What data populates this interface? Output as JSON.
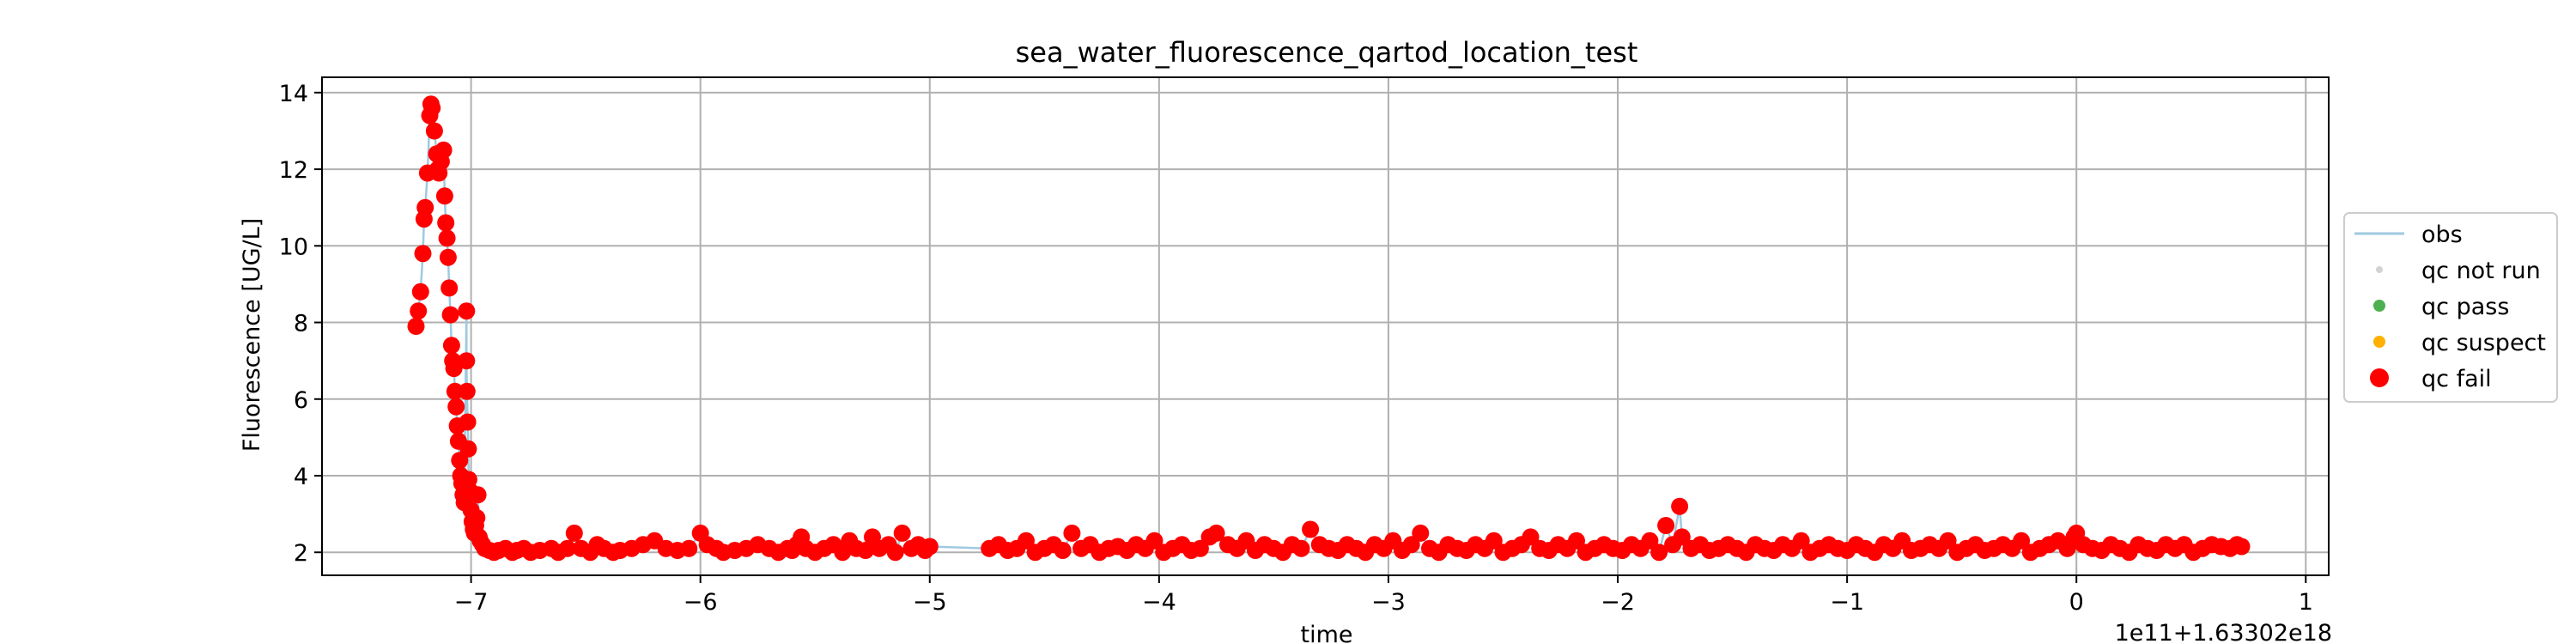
{
  "chart_data": {
    "type": "scatter",
    "title": "sea_water_fluorescence_qartod_location_test",
    "xlabel": "time",
    "ylabel": "Fluorescence [UG/L]",
    "offset_label": "1e11+1.63302e18",
    "xlim": [
      -7.65,
      1.1
    ],
    "ylim": [
      1.4,
      14.4
    ],
    "xticks": [
      -7,
      -6,
      -5,
      -4,
      -3,
      -2,
      -1,
      0,
      1
    ],
    "xtick_labels": [
      "−7",
      "−6",
      "−5",
      "−4",
      "−3",
      "−2",
      "−1",
      "0",
      "1"
    ],
    "yticks": [
      2,
      4,
      6,
      8,
      10,
      12,
      14
    ],
    "ytick_labels": [
      "2",
      "4",
      "6",
      "8",
      "10",
      "12",
      "14"
    ],
    "grid": true,
    "legend_position": "right-outside",
    "legend": [
      {
        "label": "obs",
        "kind": "line",
        "color": "#9ecae1"
      },
      {
        "label": "qc not run",
        "kind": "dot-small",
        "color": "#d3d3d3"
      },
      {
        "label": "qc pass",
        "kind": "dot",
        "color": "#4caf50"
      },
      {
        "label": "qc suspect",
        "kind": "dot",
        "color": "#ffb000"
      },
      {
        "label": "qc fail",
        "kind": "dot-large",
        "color": "#ff0000"
      }
    ],
    "series": [
      {
        "name": "qc fail",
        "color": "#ff0000",
        "points": [
          [
            -7.24,
            7.9
          ],
          [
            -7.23,
            8.3
          ],
          [
            -7.22,
            8.8
          ],
          [
            -7.21,
            9.8
          ],
          [
            -7.205,
            10.7
          ],
          [
            -7.2,
            11.0
          ],
          [
            -7.19,
            11.9
          ],
          [
            -7.18,
            13.4
          ],
          [
            -7.175,
            13.7
          ],
          [
            -7.17,
            13.6
          ],
          [
            -7.16,
            13.0
          ],
          [
            -7.15,
            12.4
          ],
          [
            -7.145,
            12.0
          ],
          [
            -7.14,
            11.9
          ],
          [
            -7.13,
            12.2
          ],
          [
            -7.12,
            12.5
          ],
          [
            -7.115,
            11.3
          ],
          [
            -7.11,
            10.6
          ],
          [
            -7.105,
            10.2
          ],
          [
            -7.1,
            9.7
          ],
          [
            -7.095,
            8.9
          ],
          [
            -7.09,
            8.2
          ],
          [
            -7.085,
            7.4
          ],
          [
            -7.08,
            7.0
          ],
          [
            -7.075,
            6.8
          ],
          [
            -7.07,
            6.2
          ],
          [
            -7.065,
            5.8
          ],
          [
            -7.06,
            5.3
          ],
          [
            -7.055,
            4.9
          ],
          [
            -7.05,
            4.4
          ],
          [
            -7.045,
            4.0
          ],
          [
            -7.04,
            3.8
          ],
          [
            -7.035,
            3.5
          ],
          [
            -7.03,
            3.3
          ],
          [
            -7.02,
            8.3
          ],
          [
            -7.02,
            7.0
          ],
          [
            -7.018,
            6.2
          ],
          [
            -7.015,
            5.4
          ],
          [
            -7.012,
            4.7
          ],
          [
            -7.01,
            3.9
          ],
          [
            -7.005,
            3.6
          ],
          [
            -7.0,
            3.1
          ],
          [
            -6.995,
            2.8
          ],
          [
            -6.99,
            2.6
          ],
          [
            -6.985,
            2.5
          ],
          [
            -6.98,
            2.7
          ],
          [
            -6.975,
            2.9
          ],
          [
            -6.97,
            3.5
          ],
          [
            -6.965,
            2.4
          ],
          [
            -6.96,
            2.3
          ],
          [
            -6.95,
            2.2
          ],
          [
            -6.94,
            2.1
          ],
          [
            -6.92,
            2.05
          ],
          [
            -6.9,
            2.0
          ],
          [
            -6.88,
            2.05
          ],
          [
            -6.85,
            2.1
          ],
          [
            -6.82,
            2.0
          ],
          [
            -6.8,
            2.05
          ],
          [
            -6.77,
            2.1
          ],
          [
            -6.74,
            2.0
          ],
          [
            -6.7,
            2.05
          ],
          [
            -6.65,
            2.1
          ],
          [
            -6.62,
            2.0
          ],
          [
            -6.58,
            2.1
          ],
          [
            -6.55,
            2.5
          ],
          [
            -6.52,
            2.1
          ],
          [
            -6.48,
            2.0
          ],
          [
            -6.45,
            2.2
          ],
          [
            -6.42,
            2.1
          ],
          [
            -6.38,
            2.0
          ],
          [
            -6.35,
            2.05
          ],
          [
            -6.3,
            2.1
          ],
          [
            -6.25,
            2.2
          ],
          [
            -6.2,
            2.3
          ],
          [
            -6.15,
            2.1
          ],
          [
            -6.1,
            2.05
          ],
          [
            -6.05,
            2.1
          ],
          [
            -6.0,
            2.5
          ],
          [
            -5.97,
            2.2
          ],
          [
            -5.93,
            2.1
          ],
          [
            -5.9,
            2.0
          ],
          [
            -5.85,
            2.05
          ],
          [
            -5.8,
            2.1
          ],
          [
            -5.75,
            2.2
          ],
          [
            -5.7,
            2.1
          ],
          [
            -5.66,
            2.0
          ],
          [
            -5.62,
            2.1
          ],
          [
            -5.6,
            2.05
          ],
          [
            -5.58,
            2.2
          ],
          [
            -5.56,
            2.4
          ],
          [
            -5.54,
            2.1
          ],
          [
            -5.5,
            2.0
          ],
          [
            -5.46,
            2.1
          ],
          [
            -5.42,
            2.2
          ],
          [
            -5.38,
            2.0
          ],
          [
            -5.35,
            2.3
          ],
          [
            -5.32,
            2.1
          ],
          [
            -5.28,
            2.05
          ],
          [
            -5.25,
            2.4
          ],
          [
            -5.22,
            2.1
          ],
          [
            -5.18,
            2.2
          ],
          [
            -5.15,
            2.0
          ],
          [
            -5.12,
            2.5
          ],
          [
            -5.08,
            2.1
          ],
          [
            -5.05,
            2.2
          ],
          [
            -5.02,
            2.05
          ],
          [
            -5.0,
            2.15
          ],
          [
            -4.74,
            2.1
          ],
          [
            -4.7,
            2.2
          ],
          [
            -4.66,
            2.05
          ],
          [
            -4.62,
            2.1
          ],
          [
            -4.58,
            2.3
          ],
          [
            -4.54,
            2.0
          ],
          [
            -4.5,
            2.1
          ],
          [
            -4.46,
            2.2
          ],
          [
            -4.42,
            2.05
          ],
          [
            -4.38,
            2.5
          ],
          [
            -4.34,
            2.1
          ],
          [
            -4.3,
            2.2
          ],
          [
            -4.26,
            2.0
          ],
          [
            -4.22,
            2.1
          ],
          [
            -4.18,
            2.15
          ],
          [
            -4.14,
            2.05
          ],
          [
            -4.1,
            2.2
          ],
          [
            -4.06,
            2.1
          ],
          [
            -4.02,
            2.3
          ],
          [
            -3.98,
            2.0
          ],
          [
            -3.94,
            2.1
          ],
          [
            -3.9,
            2.2
          ],
          [
            -3.86,
            2.05
          ],
          [
            -3.82,
            2.1
          ],
          [
            -3.78,
            2.4
          ],
          [
            -3.75,
            2.5
          ],
          [
            -3.7,
            2.2
          ],
          [
            -3.66,
            2.1
          ],
          [
            -3.62,
            2.3
          ],
          [
            -3.58,
            2.05
          ],
          [
            -3.54,
            2.2
          ],
          [
            -3.5,
            2.1
          ],
          [
            -3.46,
            2.0
          ],
          [
            -3.42,
            2.2
          ],
          [
            -3.38,
            2.1
          ],
          [
            -3.34,
            2.6
          ],
          [
            -3.3,
            2.2
          ],
          [
            -3.26,
            2.1
          ],
          [
            -3.22,
            2.05
          ],
          [
            -3.18,
            2.2
          ],
          [
            -3.14,
            2.1
          ],
          [
            -3.1,
            2.0
          ],
          [
            -3.06,
            2.2
          ],
          [
            -3.02,
            2.1
          ],
          [
            -2.98,
            2.3
          ],
          [
            -2.94,
            2.05
          ],
          [
            -2.9,
            2.2
          ],
          [
            -2.86,
            2.5
          ],
          [
            -2.82,
            2.1
          ],
          [
            -2.78,
            2.0
          ],
          [
            -2.74,
            2.2
          ],
          [
            -2.7,
            2.1
          ],
          [
            -2.66,
            2.05
          ],
          [
            -2.62,
            2.2
          ],
          [
            -2.58,
            2.1
          ],
          [
            -2.54,
            2.3
          ],
          [
            -2.5,
            2.0
          ],
          [
            -2.46,
            2.1
          ],
          [
            -2.42,
            2.2
          ],
          [
            -2.38,
            2.4
          ],
          [
            -2.34,
            2.1
          ],
          [
            -2.3,
            2.05
          ],
          [
            -2.26,
            2.2
          ],
          [
            -2.22,
            2.1
          ],
          [
            -2.18,
            2.3
          ],
          [
            -2.14,
            2.0
          ],
          [
            -2.1,
            2.1
          ],
          [
            -2.06,
            2.2
          ],
          [
            -2.02,
            2.1
          ],
          [
            -1.98,
            2.05
          ],
          [
            -1.94,
            2.2
          ],
          [
            -1.9,
            2.1
          ],
          [
            -1.86,
            2.3
          ],
          [
            -1.82,
            2.0
          ],
          [
            -1.79,
            2.7
          ],
          [
            -1.76,
            2.2
          ],
          [
            -1.73,
            3.2
          ],
          [
            -1.72,
            2.4
          ],
          [
            -1.68,
            2.1
          ],
          [
            -1.64,
            2.2
          ],
          [
            -1.6,
            2.05
          ],
          [
            -1.56,
            2.1
          ],
          [
            -1.52,
            2.2
          ],
          [
            -1.48,
            2.1
          ],
          [
            -1.44,
            2.0
          ],
          [
            -1.4,
            2.2
          ],
          [
            -1.36,
            2.1
          ],
          [
            -1.32,
            2.05
          ],
          [
            -1.28,
            2.2
          ],
          [
            -1.24,
            2.1
          ],
          [
            -1.2,
            2.3
          ],
          [
            -1.16,
            2.0
          ],
          [
            -1.12,
            2.1
          ],
          [
            -1.08,
            2.2
          ],
          [
            -1.04,
            2.1
          ],
          [
            -1.0,
            2.05
          ],
          [
            -0.96,
            2.2
          ],
          [
            -0.92,
            2.1
          ],
          [
            -0.88,
            2.0
          ],
          [
            -0.84,
            2.2
          ],
          [
            -0.8,
            2.1
          ],
          [
            -0.76,
            2.3
          ],
          [
            -0.72,
            2.05
          ],
          [
            -0.68,
            2.1
          ],
          [
            -0.64,
            2.2
          ],
          [
            -0.6,
            2.1
          ],
          [
            -0.56,
            2.3
          ],
          [
            -0.52,
            2.0
          ],
          [
            -0.48,
            2.1
          ],
          [
            -0.44,
            2.2
          ],
          [
            -0.4,
            2.05
          ],
          [
            -0.36,
            2.1
          ],
          [
            -0.32,
            2.2
          ],
          [
            -0.28,
            2.1
          ],
          [
            -0.24,
            2.3
          ],
          [
            -0.2,
            2.0
          ],
          [
            -0.16,
            2.1
          ],
          [
            -0.12,
            2.2
          ],
          [
            -0.08,
            2.3
          ],
          [
            -0.04,
            2.1
          ],
          [
            -0.01,
            2.4
          ],
          [
            0.0,
            2.5
          ],
          [
            0.03,
            2.2
          ],
          [
            0.07,
            2.1
          ],
          [
            0.11,
            2.05
          ],
          [
            0.15,
            2.2
          ],
          [
            0.19,
            2.1
          ],
          [
            0.23,
            2.0
          ],
          [
            0.27,
            2.2
          ],
          [
            0.31,
            2.1
          ],
          [
            0.35,
            2.05
          ],
          [
            0.39,
            2.2
          ],
          [
            0.43,
            2.1
          ],
          [
            0.47,
            2.2
          ],
          [
            0.51,
            2.0
          ],
          [
            0.55,
            2.1
          ],
          [
            0.59,
            2.2
          ],
          [
            0.63,
            2.15
          ],
          [
            0.67,
            2.1
          ],
          [
            0.7,
            2.2
          ],
          [
            0.72,
            2.15
          ]
        ]
      }
    ]
  }
}
